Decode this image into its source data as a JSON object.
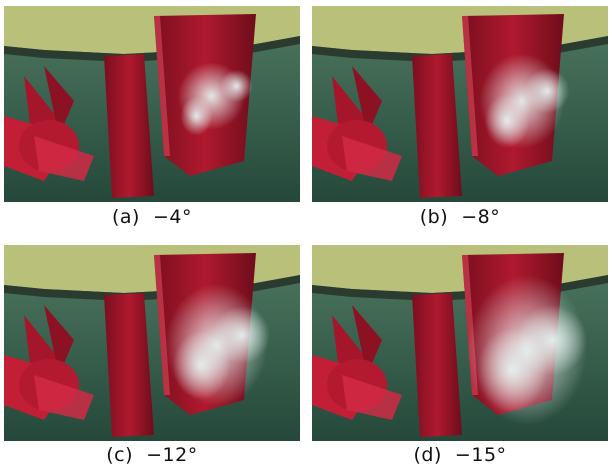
{
  "figure": {
    "panels": [
      {
        "id": "a",
        "caption": "(a)  −4°",
        "cavity_level": 0.25
      },
      {
        "id": "b",
        "caption": "(b)  −8°",
        "cavity_level": 0.5
      },
      {
        "id": "c",
        "caption": "(c)  −12°",
        "cavity_level": 0.75
      },
      {
        "id": "d",
        "caption": "(d)  −15°",
        "cavity_level": 1.0
      }
    ],
    "colors": {
      "water": "#3f6a52",
      "hull": "#b9c07a",
      "rudder": "#b0192e",
      "cavitation": "#e6f2f0"
    }
  }
}
